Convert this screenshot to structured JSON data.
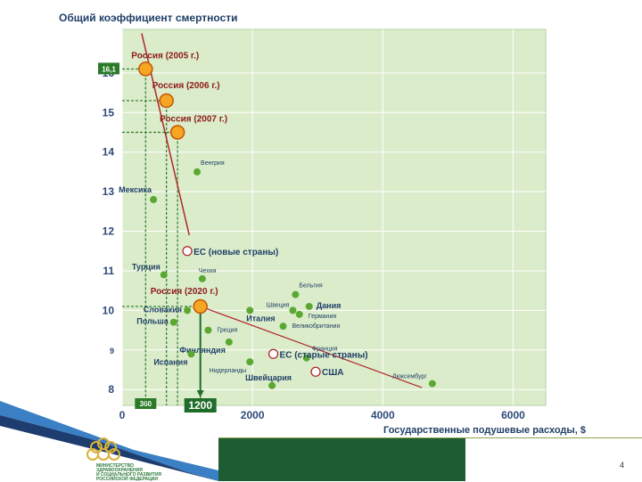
{
  "chart_data": {
    "type": "scatter",
    "title": "Общий коэффициент смертности",
    "xlabel": "Государственные подушевые расходы, $",
    "ylabel": "",
    "xlim": [
      0,
      6500
    ],
    "ylim": [
      7.6,
      17.1
    ],
    "x_ticks": [
      {
        "value": 0,
        "label": "0"
      },
      {
        "value": 2000,
        "label": "2000"
      },
      {
        "value": 4000,
        "label": "4000"
      },
      {
        "value": 6000,
        "label": "6000"
      }
    ],
    "y_ticks": [
      {
        "value": 8,
        "label": "8"
      },
      {
        "value": 9,
        "label": "9"
      },
      {
        "value": 10,
        "label": "10"
      },
      {
        "value": 11,
        "label": "11"
      },
      {
        "value": 12,
        "label": "12"
      },
      {
        "value": 13,
        "label": "13"
      },
      {
        "value": 14,
        "label": "14"
      },
      {
        "value": 15,
        "label": "15"
      },
      {
        "value": 16,
        "label": "16"
      }
    ],
    "highlight_y": {
      "value": 16.1,
      "label": "16,1"
    },
    "highlight_x": [
      {
        "value": 360,
        "label": "360"
      },
      {
        "value": 1200,
        "label": "1200",
        "emphasis": true
      }
    ],
    "russia_points": [
      {
        "label": "Россия (2005 г.)",
        "x": 360,
        "y": 16.1
      },
      {
        "label": "Россия (2006 г.)",
        "x": 680,
        "y": 15.3
      },
      {
        "label": "Россия (2007 г.)",
        "x": 850,
        "y": 14.5
      },
      {
        "label": "Россия (2020 г.)",
        "x": 1200,
        "y": 10.1
      }
    ],
    "open_points": [
      {
        "label": "ЕС (новые страны)",
        "x": 1000,
        "y": 11.5
      },
      {
        "label": "ЕС (старые страны)",
        "x": 2320,
        "y": 8.9
      },
      {
        "label": "США",
        "x": 2970,
        "y": 8.45
      }
    ],
    "countries": [
      {
        "label": "Венгрия",
        "x": 1150,
        "y": 13.5
      },
      {
        "label": "Мексика",
        "x": 480,
        "y": 12.8
      },
      {
        "label": "Турция",
        "x": 640,
        "y": 10.9
      },
      {
        "label": "Чехия",
        "x": 1230,
        "y": 10.8
      },
      {
        "label": "Словакия",
        "x": 1000,
        "y": 10.0
      },
      {
        "label": "Польша",
        "x": 790,
        "y": 9.7
      },
      {
        "label": "Италия",
        "x": 1960,
        "y": 10.0
      },
      {
        "label": "Греция",
        "x": 1320,
        "y": 9.5
      },
      {
        "label": "Финляндия",
        "x": 1640,
        "y": 9.2
      },
      {
        "label": "Испания",
        "x": 1060,
        "y": 8.9
      },
      {
        "label": "Нидерланды",
        "x": 1960,
        "y": 8.7
      },
      {
        "label": "Швейцария",
        "x": 2300,
        "y": 8.1
      },
      {
        "label": "Бельгия",
        "x": 2660,
        "y": 10.4
      },
      {
        "label": "Швеция",
        "x": 2620,
        "y": 10.0
      },
      {
        "label": "Дания",
        "x": 2870,
        "y": 10.1
      },
      {
        "label": "Германия",
        "x": 2720,
        "y": 9.9
      },
      {
        "label": "Великобритания",
        "x": 2470,
        "y": 9.6
      },
      {
        "label": "Франция",
        "x": 2830,
        "y": 8.8
      },
      {
        "label": "Люксембург",
        "x": 4760,
        "y": 8.15
      }
    ],
    "trend_line": [
      [
        300,
        17.0
      ],
      [
        1030,
        11.9
      ]
    ],
    "trend_line2": [
      [
        1200,
        10.1
      ],
      [
        4600,
        8.05
      ]
    ],
    "colors": {
      "plot_bg": "#dbeccb",
      "grid": "#ffffff",
      "country": "#5aa832",
      "russia_fill": "#f5a623",
      "russia_stroke": "#c45500",
      "trend": "#b0282b",
      "label": "#1f3f66",
      "ylabel_tick": "#2f4a7a",
      "highlight": "#2a7a2a",
      "emphasis": "#1f6d2a"
    }
  },
  "footer": {
    "ministry_text": [
      "МИНИСТЕРСТВО",
      "ЗДРАВООХРАНЕНИЯ",
      "И СОЦИАЛЬНОГО РАЗВИТИЯ",
      "РОССИЙСКОЙ ФЕДЕРАЦИИ"
    ],
    "page_number": "4"
  }
}
